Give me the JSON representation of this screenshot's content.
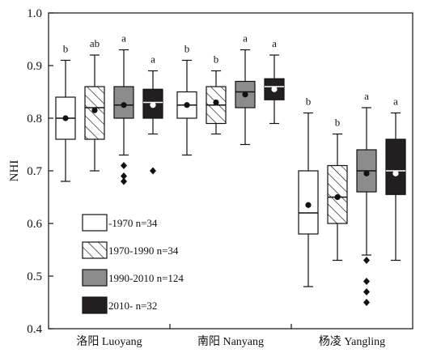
{
  "chart_data": {
    "type": "box",
    "ylabel": "NHI",
    "ylim": [
      0.4,
      1.0
    ],
    "yticks": [
      "0.4",
      "0.5",
      "0.6",
      "0.7",
      "0.8",
      "0.9",
      "1.0"
    ],
    "categories": [
      "洛阳 Luoyang",
      "南阳 Nanyang",
      "杨凌 Yangling"
    ],
    "legend_position": "lower-left",
    "series": [
      {
        "name": "-1970 n=34",
        "style": "white",
        "color": "#ffffff",
        "boxes": [
          {
            "whisker_low": 0.68,
            "q1": 0.76,
            "median": 0.8,
            "q3": 0.84,
            "whisker_high": 0.91,
            "mean": 0.8,
            "outliers": [],
            "sig": "b"
          },
          {
            "whisker_low": 0.73,
            "q1": 0.8,
            "median": 0.825,
            "q3": 0.85,
            "whisker_high": 0.91,
            "mean": 0.825,
            "outliers": [],
            "sig": "b"
          },
          {
            "whisker_low": 0.48,
            "q1": 0.58,
            "median": 0.62,
            "q3": 0.7,
            "whisker_high": 0.81,
            "mean": 0.635,
            "outliers": [],
            "sig": "b"
          }
        ]
      },
      {
        "name": "1970-1990 n=34",
        "style": "hatched",
        "color": "#ffffff",
        "boxes": [
          {
            "whisker_low": 0.7,
            "q1": 0.76,
            "median": 0.82,
            "q3": 0.86,
            "whisker_high": 0.92,
            "mean": 0.815,
            "outliers": [],
            "sig": "ab"
          },
          {
            "whisker_low": 0.77,
            "q1": 0.79,
            "median": 0.825,
            "q3": 0.86,
            "whisker_high": 0.89,
            "mean": 0.83,
            "outliers": [],
            "sig": "b"
          },
          {
            "whisker_low": 0.53,
            "q1": 0.6,
            "median": 0.65,
            "q3": 0.71,
            "whisker_high": 0.77,
            "mean": 0.65,
            "outliers": [],
            "sig": "b"
          }
        ]
      },
      {
        "name": "1990-2010 n=124",
        "style": "gray",
        "color": "#8c8c8c",
        "boxes": [
          {
            "whisker_low": 0.73,
            "q1": 0.8,
            "median": 0.825,
            "q3": 0.86,
            "whisker_high": 0.93,
            "mean": 0.825,
            "outliers": [
              0.71,
              0.69,
              0.68
            ],
            "sig": "a"
          },
          {
            "whisker_low": 0.75,
            "q1": 0.82,
            "median": 0.85,
            "q3": 0.87,
            "whisker_high": 0.93,
            "mean": 0.845,
            "outliers": [],
            "sig": "a"
          },
          {
            "whisker_low": 0.54,
            "q1": 0.66,
            "median": 0.7,
            "q3": 0.74,
            "whisker_high": 0.82,
            "mean": 0.695,
            "outliers": [
              0.53,
              0.49,
              0.47,
              0.45
            ],
            "sig": "a"
          }
        ]
      },
      {
        "name": "2010- n=32",
        "style": "black",
        "color": "#231f20",
        "boxes": [
          {
            "whisker_low": 0.77,
            "q1": 0.8,
            "median": 0.83,
            "q3": 0.855,
            "whisker_high": 0.89,
            "mean": 0.825,
            "outliers": [
              0.7
            ],
            "sig": "a"
          },
          {
            "whisker_low": 0.79,
            "q1": 0.835,
            "median": 0.86,
            "q3": 0.875,
            "whisker_high": 0.92,
            "mean": 0.855,
            "outliers": [],
            "sig": "a"
          },
          {
            "whisker_low": 0.53,
            "q1": 0.655,
            "median": 0.7,
            "q3": 0.76,
            "whisker_high": 0.81,
            "mean": 0.695,
            "outliers": [],
            "sig": "a"
          }
        ]
      }
    ]
  }
}
